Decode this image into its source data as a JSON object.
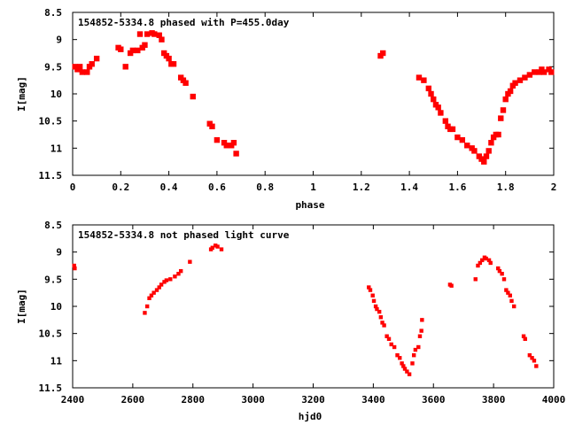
{
  "chart_data": [
    {
      "type": "scatter",
      "title": "154852-5334.8 phased with P=455.0day",
      "xlabel": "phase",
      "ylabel": "I[mag]",
      "xlim": [
        0,
        2
      ],
      "ylim": [
        11.5,
        8.5
      ],
      "y_inverted": true,
      "xticks": [
        "0",
        "0.2",
        "0.4",
        "0.6",
        "0.8",
        "1",
        "1.2",
        "1.4",
        "1.6",
        "1.8",
        "2"
      ],
      "yticks": [
        "8.5",
        "9",
        "9.5",
        "10",
        "10.5",
        "11",
        "11.5"
      ],
      "grid": false,
      "marker_color": "#ff0000",
      "x": [
        0.01,
        0.02,
        0.03,
        0.04,
        0.06,
        0.07,
        0.08,
        0.1,
        0.19,
        0.2,
        0.22,
        0.24,
        0.25,
        0.27,
        0.28,
        0.29,
        0.3,
        0.31,
        0.33,
        0.34,
        0.36,
        0.37,
        0.38,
        0.39,
        0.4,
        0.41,
        0.42,
        0.45,
        0.46,
        0.47,
        0.5,
        0.57,
        0.58,
        0.6,
        0.63,
        0.64,
        0.66,
        0.67,
        0.68,
        1.28,
        1.29,
        1.44,
        1.46,
        1.48,
        1.49,
        1.5,
        1.51,
        1.52,
        1.53,
        1.55,
        1.56,
        1.57,
        1.58,
        1.6,
        1.62,
        1.64,
        1.66,
        1.67,
        1.69,
        1.7,
        1.71,
        1.72,
        1.73,
        1.74,
        1.75,
        1.76,
        1.77,
        1.78,
        1.79,
        1.8,
        1.81,
        1.82,
        1.83,
        1.84,
        1.86,
        1.88,
        1.9,
        1.92,
        1.94,
        1.95,
        1.96,
        1.98,
        1.99
      ],
      "y": [
        9.5,
        9.55,
        9.5,
        9.6,
        9.6,
        9.5,
        9.45,
        9.35,
        9.15,
        9.18,
        9.5,
        9.25,
        9.2,
        9.2,
        8.9,
        9.15,
        9.1,
        8.9,
        8.88,
        8.9,
        8.92,
        9.0,
        9.25,
        9.3,
        9.35,
        9.45,
        9.45,
        9.7,
        9.75,
        9.8,
        10.05,
        10.55,
        10.6,
        10.85,
        10.9,
        10.95,
        10.95,
        10.9,
        11.1,
        9.3,
        9.25,
        9.7,
        9.75,
        9.9,
        10.0,
        10.1,
        10.2,
        10.25,
        10.35,
        10.5,
        10.6,
        10.65,
        10.65,
        10.8,
        10.85,
        10.95,
        11.0,
        11.05,
        11.15,
        11.2,
        11.25,
        11.15,
        11.05,
        10.9,
        10.8,
        10.75,
        10.75,
        10.45,
        10.3,
        10.1,
        10.0,
        9.95,
        9.85,
        9.8,
        9.75,
        9.7,
        9.65,
        9.6,
        9.6,
        9.55,
        9.6,
        9.55,
        9.6
      ],
      "marker_size": 3.2
    },
    {
      "type": "scatter",
      "title": "154852-5334.8 not phased light curve",
      "xlabel": "hjd0",
      "ylabel": "I[mag]",
      "xlim": [
        2400,
        4000
      ],
      "ylim": [
        11.5,
        8.5
      ],
      "y_inverted": true,
      "xticks": [
        "2400",
        "2600",
        "2800",
        "3000",
        "3200",
        "3400",
        "3600",
        "3800",
        "4000"
      ],
      "yticks": [
        "8.5",
        "9",
        "9.5",
        "10",
        "10.5",
        "11",
        "11.5"
      ],
      "grid": false,
      "marker_color": "#ff0000",
      "x": [
        2405,
        2407,
        2640,
        2648,
        2655,
        2662,
        2670,
        2680,
        2688,
        2695,
        2705,
        2712,
        2725,
        2740,
        2752,
        2760,
        2790,
        2860,
        2865,
        2875,
        2882,
        2895,
        3385,
        3390,
        3398,
        3402,
        3408,
        3412,
        3420,
        3425,
        3430,
        3436,
        3445,
        3452,
        3460,
        3470,
        3480,
        3488,
        3495,
        3500,
        3505,
        3512,
        3520,
        3530,
        3535,
        3540,
        3550,
        3555,
        3560,
        3562,
        3655,
        3660,
        3740,
        3748,
        3755,
        3762,
        3770,
        3775,
        3785,
        3790,
        3815,
        3820,
        3828,
        3835,
        3842,
        3848,
        3855,
        3860,
        3868,
        3900,
        3905,
        3920,
        3928,
        3935,
        3942
      ],
      "y": [
        9.25,
        9.3,
        10.12,
        10.0,
        9.85,
        9.8,
        9.75,
        9.7,
        9.65,
        9.6,
        9.55,
        9.52,
        9.5,
        9.45,
        9.4,
        9.35,
        9.18,
        8.95,
        8.92,
        8.88,
        8.9,
        8.95,
        9.65,
        9.7,
        9.8,
        9.9,
        10.0,
        10.05,
        10.1,
        10.2,
        10.3,
        10.35,
        10.55,
        10.6,
        10.7,
        10.75,
        10.9,
        10.95,
        11.05,
        11.1,
        11.15,
        11.2,
        11.25,
        11.05,
        10.9,
        10.8,
        10.75,
        10.55,
        10.45,
        10.25,
        9.6,
        9.62,
        9.5,
        9.25,
        9.2,
        9.15,
        9.1,
        9.12,
        9.15,
        9.2,
        9.3,
        9.35,
        9.4,
        9.5,
        9.7,
        9.75,
        9.8,
        9.9,
        10.0,
        10.55,
        10.6,
        10.9,
        10.95,
        11.0,
        11.1
      ],
      "marker_size": 2.2
    }
  ]
}
